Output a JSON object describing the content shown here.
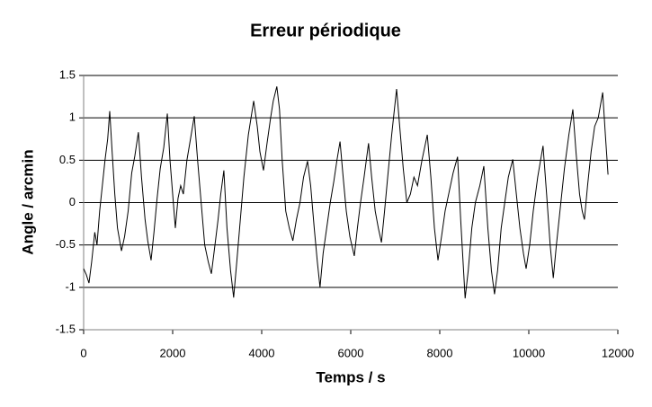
{
  "chart_data": {
    "type": "line",
    "title": "Erreur périodique",
    "x_label": "Temps / s",
    "y_label": "Angle / arcmin",
    "xlim": [
      0,
      12000
    ],
    "xticks": [
      0,
      2000,
      4000,
      6000,
      8000,
      10000,
      12000
    ],
    "ylim": [
      -1.5,
      1.5
    ],
    "yticks": [
      -1.5,
      -1,
      -0.5,
      0,
      0.5,
      1,
      1.5
    ],
    "grid": true,
    "series": [
      {
        "color": "#000000",
        "x": [
          0,
          60,
          120,
          180,
          250,
          300,
          360,
          420,
          480,
          540,
          586,
          640,
          700,
          760,
          850,
          920,
          1000,
          1080,
          1150,
          1230,
          1300,
          1380,
          1440,
          1515,
          1580,
          1650,
          1720,
          1800,
          1880,
          1940,
          2000,
          2060,
          2120,
          2180,
          2240,
          2320,
          2400,
          2485,
          2560,
          2640,
          2720,
          2800,
          2870,
          2950,
          3020,
          3080,
          3150,
          3220,
          3300,
          3370,
          3440,
          3520,
          3600,
          3700,
          3820,
          3900,
          3960,
          4040,
          4120,
          4200,
          4260,
          4340,
          4400,
          4460,
          4540,
          4620,
          4700,
          4780,
          4860,
          4940,
          5030,
          5100,
          5180,
          5250,
          5310,
          5380,
          5460,
          5540,
          5620,
          5690,
          5760,
          5830,
          5900,
          5980,
          6080,
          6150,
          6220,
          6300,
          6400,
          6470,
          6550,
          6620,
          6690,
          6760,
          6830,
          6920,
          7030,
          7100,
          7180,
          7260,
          7340,
          7420,
          7500,
          7600,
          7720,
          7800,
          7880,
          7960,
          8040,
          8120,
          8200,
          8300,
          8400,
          8470,
          8570,
          8640,
          8720,
          8800,
          8900,
          8990,
          9080,
          9160,
          9230,
          9300,
          9380,
          9460,
          9540,
          9640,
          9720,
          9800,
          9880,
          9940,
          10020,
          10100,
          10200,
          10320,
          10400,
          10480,
          10550,
          10620,
          10700,
          10800,
          10900,
          10990,
          11060,
          11140,
          11200,
          11250,
          11320,
          11400,
          11480,
          11560,
          11660,
          11720,
          11780
        ],
        "values": [
          -0.78,
          -0.85,
          -0.95,
          -0.7,
          -0.35,
          -0.5,
          -0.1,
          0.2,
          0.5,
          0.75,
          1.08,
          0.6,
          0.1,
          -0.3,
          -0.57,
          -0.4,
          -0.1,
          0.35,
          0.55,
          0.83,
          0.3,
          -0.2,
          -0.45,
          -0.68,
          -0.35,
          0.05,
          0.4,
          0.65,
          1.05,
          0.5,
          0.1,
          -0.3,
          0.05,
          0.2,
          0.1,
          0.5,
          0.75,
          1.02,
          0.5,
          0.0,
          -0.5,
          -0.7,
          -0.84,
          -0.5,
          -0.2,
          0.1,
          0.38,
          -0.3,
          -0.8,
          -1.12,
          -0.7,
          -0.2,
          0.3,
          0.8,
          1.2,
          0.9,
          0.6,
          0.38,
          0.7,
          1.0,
          1.2,
          1.37,
          1.1,
          0.5,
          -0.1,
          -0.3,
          -0.45,
          -0.2,
          0.0,
          0.3,
          0.49,
          0.2,
          -0.3,
          -0.7,
          -1.0,
          -0.6,
          -0.3,
          0.0,
          0.25,
          0.5,
          0.72,
          0.3,
          -0.1,
          -0.4,
          -0.63,
          -0.3,
          0.0,
          0.3,
          0.7,
          0.3,
          -0.1,
          -0.3,
          -0.47,
          -0.1,
          0.3,
          0.8,
          1.34,
          0.9,
          0.4,
          0.0,
          0.1,
          0.3,
          0.2,
          0.5,
          0.8,
          0.3,
          -0.3,
          -0.68,
          -0.4,
          -0.1,
          0.1,
          0.35,
          0.54,
          -0.2,
          -1.13,
          -0.8,
          -0.3,
          0.0,
          0.2,
          0.43,
          -0.3,
          -0.8,
          -1.08,
          -0.8,
          -0.3,
          0.0,
          0.3,
          0.51,
          0.1,
          -0.3,
          -0.6,
          -0.78,
          -0.5,
          -0.1,
          0.3,
          0.67,
          0.1,
          -0.5,
          -0.89,
          -0.5,
          -0.1,
          0.4,
          0.8,
          1.1,
          0.6,
          0.1,
          -0.1,
          -0.2,
          0.2,
          0.6,
          0.9,
          1.0,
          1.3,
          0.8,
          0.33
        ]
      }
    ]
  }
}
